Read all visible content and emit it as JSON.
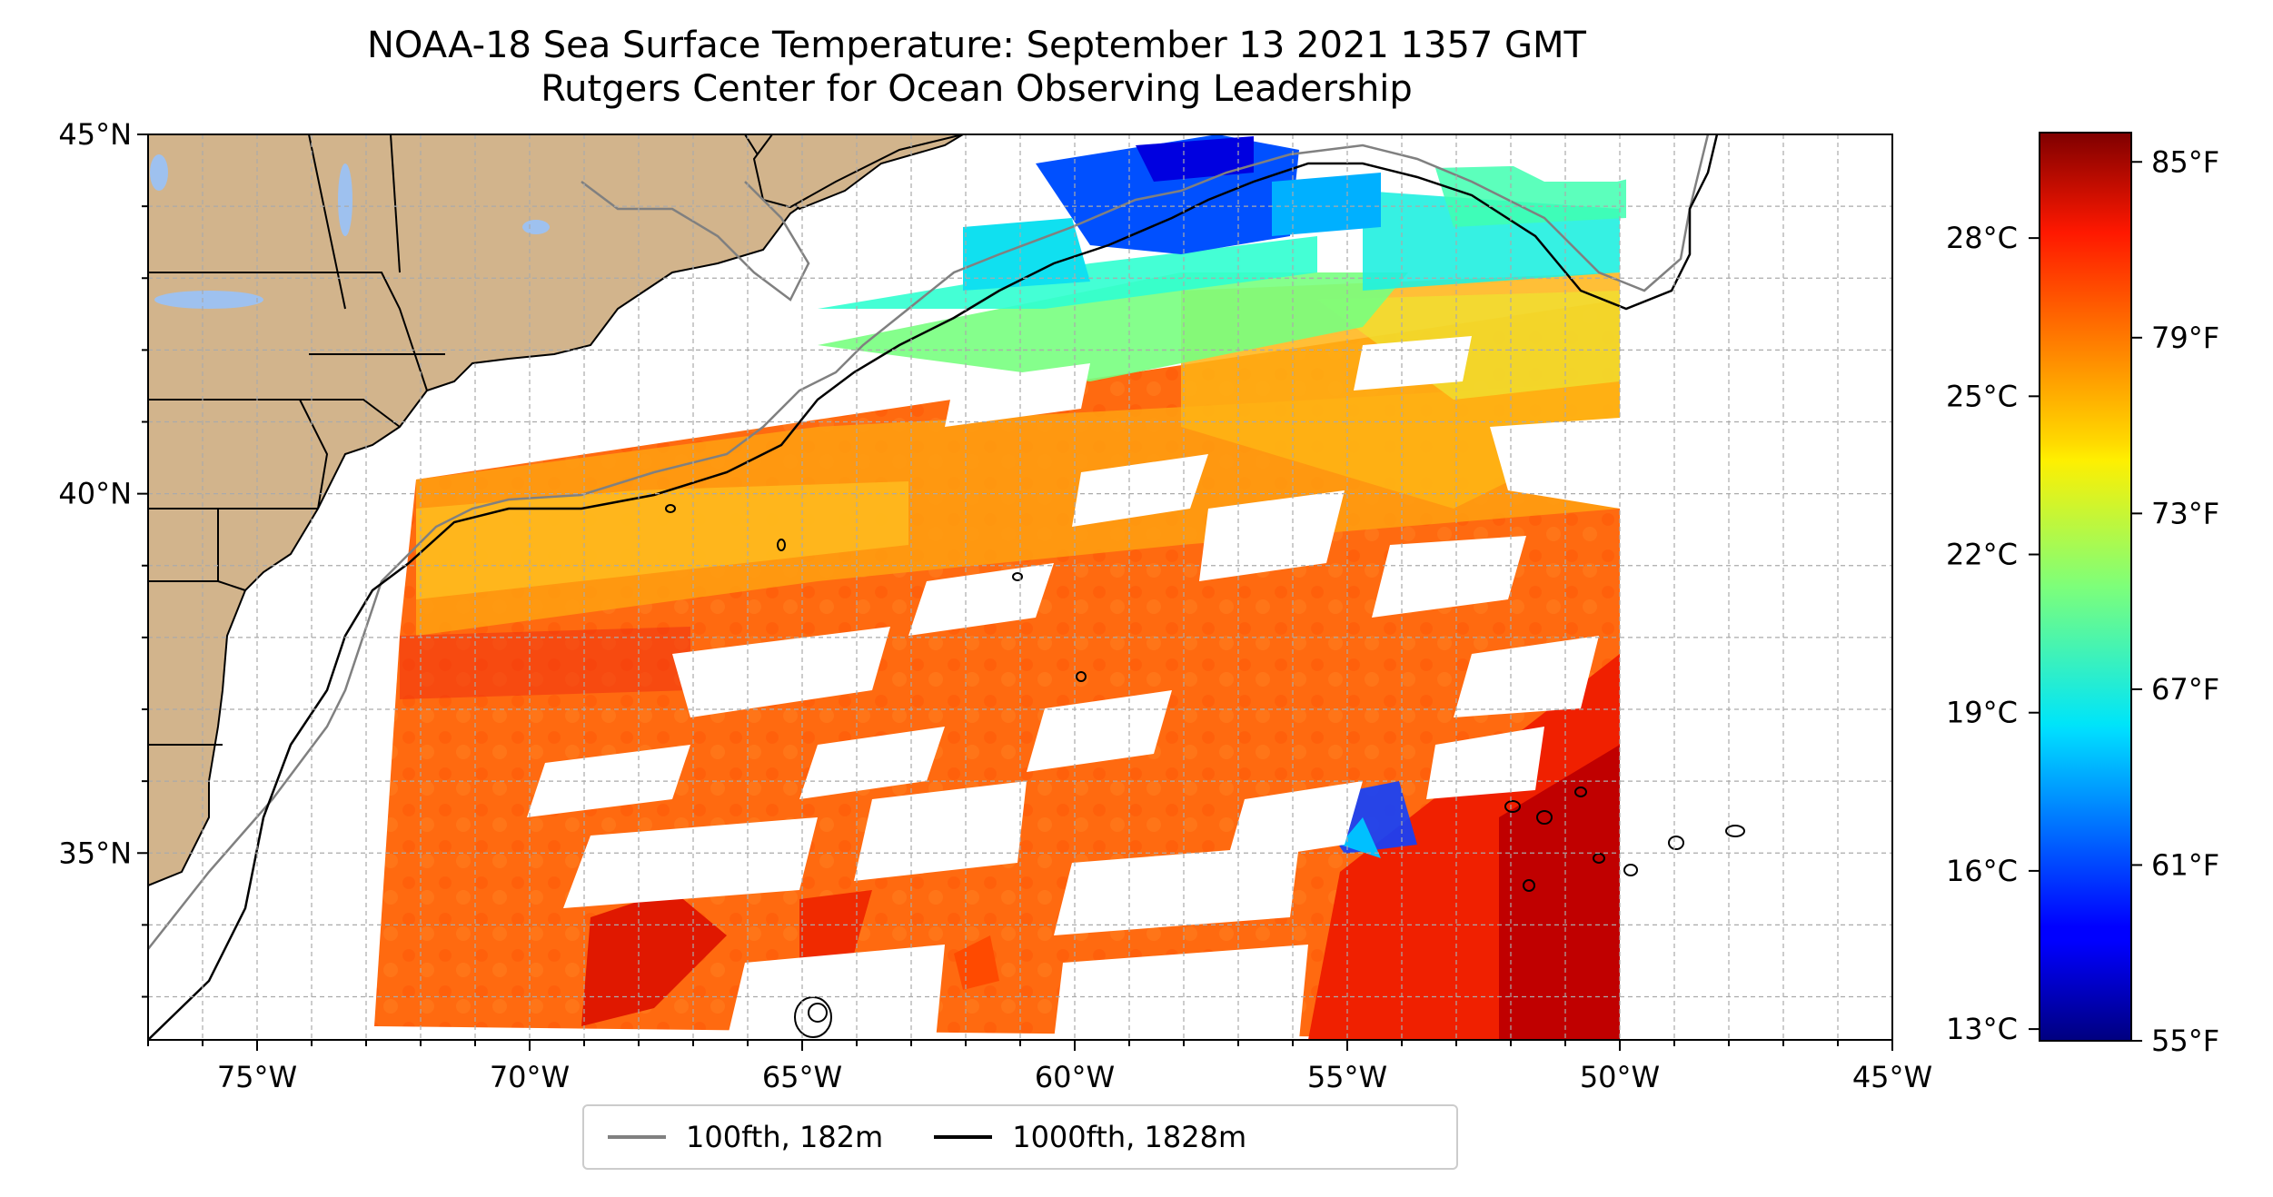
{
  "title": {
    "line1": "NOAA-18 Sea Surface Temperature: September 13 2021 1357 GMT",
    "line2": "Rutgers Center for Ocean Observing Leadership"
  },
  "map": {
    "lon_range": [
      -77,
      -45
    ],
    "lat_range": [
      32.4,
      45
    ],
    "x_ticks": [
      {
        "lon": -75,
        "label": "75°W"
      },
      {
        "lon": -70,
        "label": "70°W"
      },
      {
        "lon": -65,
        "label": "65°W"
      },
      {
        "lon": -60,
        "label": "60°W"
      },
      {
        "lon": -55,
        "label": "55°W"
      },
      {
        "lon": -50,
        "label": "50°W"
      },
      {
        "lon": -45,
        "label": "45°W"
      }
    ],
    "y_ticks": [
      {
        "lat": 45,
        "label": "45°N"
      },
      {
        "lat": 40,
        "label": "40°N"
      },
      {
        "lat": 35,
        "label": "35°N"
      }
    ],
    "grid": true,
    "land_color": "#d2b48c",
    "lake_color": "#9ec1ef"
  },
  "colorbar": {
    "colormap": "jet",
    "range_f": [
      55,
      86
    ],
    "fahrenheit_ticks": [
      {
        "value": 55,
        "label": "55°F"
      },
      {
        "value": 61,
        "label": "61°F"
      },
      {
        "value": 67,
        "label": "67°F"
      },
      {
        "value": 73,
        "label": "73°F"
      },
      {
        "value": 79,
        "label": "79°F"
      },
      {
        "value": 85,
        "label": "85°F"
      }
    ],
    "celsius_ticks": [
      {
        "value": 13,
        "label": "13°C"
      },
      {
        "value": 16,
        "label": "16°C"
      },
      {
        "value": 19,
        "label": "19°C"
      },
      {
        "value": 22,
        "label": "22°C"
      },
      {
        "value": 25,
        "label": "25°C"
      },
      {
        "value": 28,
        "label": "28°C"
      }
    ]
  },
  "legend": {
    "items": [
      {
        "label": "100fth, 182m",
        "color": "#808080"
      },
      {
        "label": "1000fth, 1828m",
        "color": "#000000"
      }
    ]
  }
}
